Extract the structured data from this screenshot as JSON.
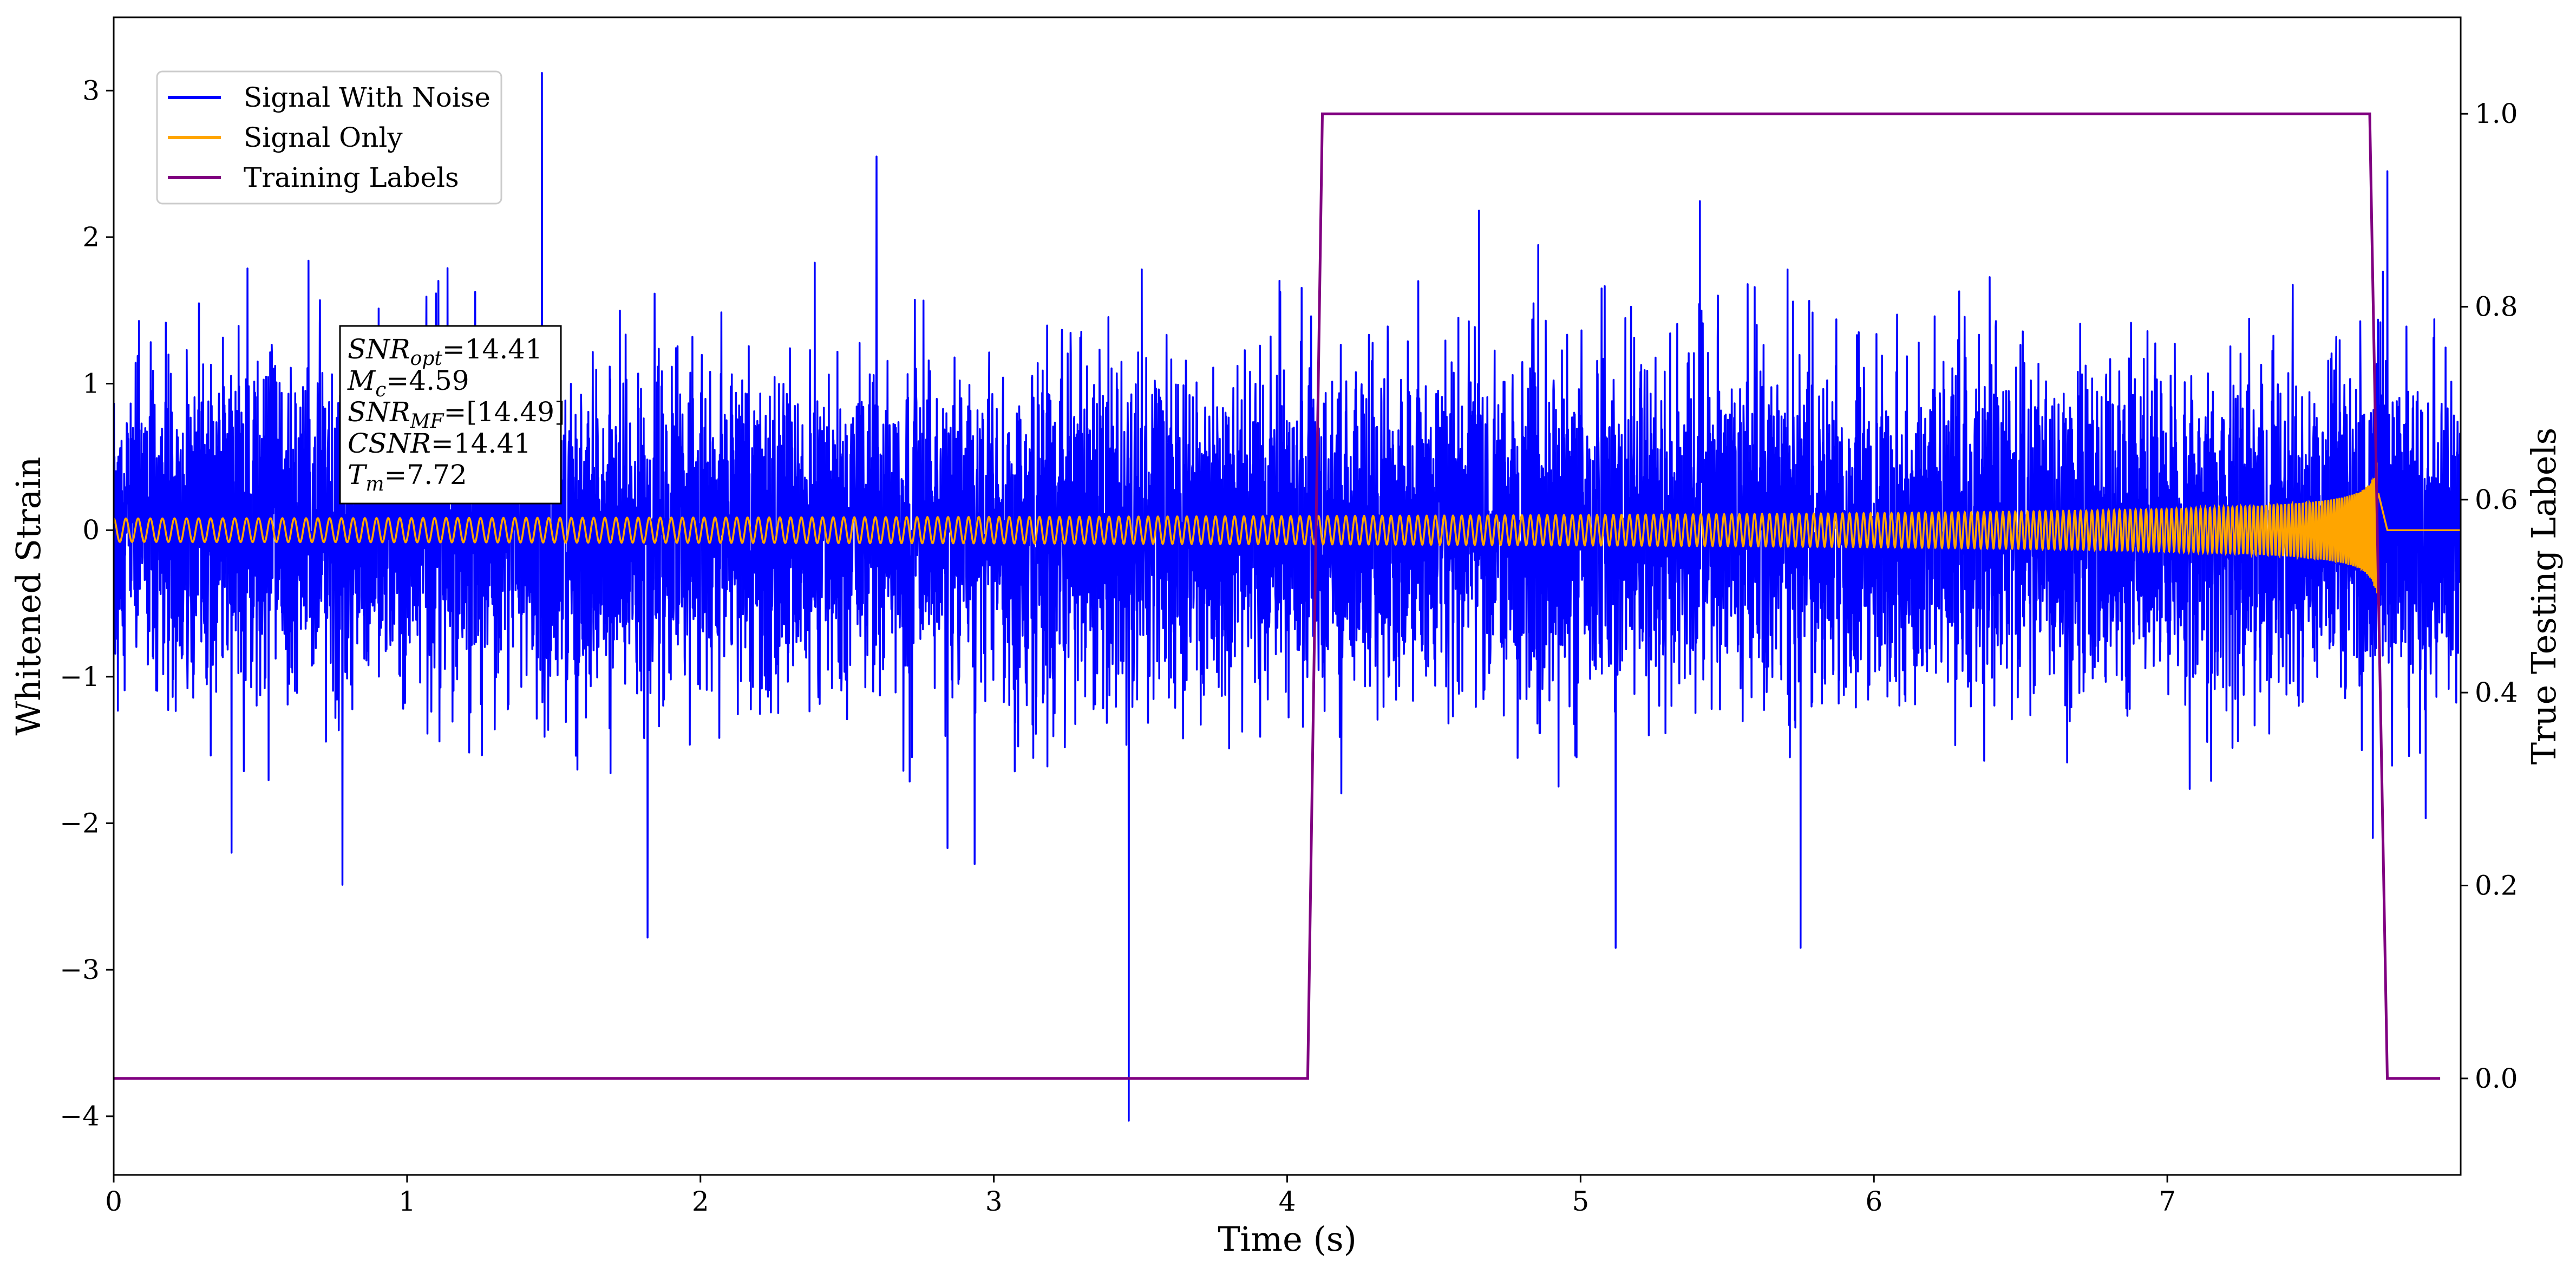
{
  "chart_data": {
    "type": "line",
    "title": "",
    "xlabel": "Time (s)",
    "ylabel": "Whitened Strain",
    "y2label": "True Testing Labels",
    "xlim": [
      0,
      8.0
    ],
    "ylim": [
      -4.4,
      3.5
    ],
    "y2lim": [
      -0.1,
      1.1
    ],
    "grid": false,
    "legend_position": "top-left",
    "x_ticks": [
      0,
      1,
      2,
      3,
      4,
      5,
      6,
      7
    ],
    "x_tick_labels": [
      "0",
      "1",
      "2",
      "3",
      "4",
      "5",
      "6",
      "7"
    ],
    "y_ticks": [
      -4,
      -3,
      -2,
      -1,
      0,
      1,
      2,
      3
    ],
    "y_tick_labels": [
      "−4",
      "−3",
      "−2",
      "−1",
      "0",
      "1",
      "2",
      "3"
    ],
    "y2_ticks": [
      0.0,
      0.2,
      0.4,
      0.6,
      0.8,
      1.0
    ],
    "y2_tick_labels": [
      "0.0",
      "0.2",
      "0.4",
      "0.6",
      "0.8",
      "1.0"
    ],
    "series": [
      {
        "name": "Signal With Noise",
        "color": "#0000ff",
        "axis": "left",
        "description": "dense noise, typical amplitude ±1.3, extremes 3.12 at t≈1.46 and −4.03 at t≈3.46",
        "duration": 8.0,
        "noise_std": 0.55,
        "peaks": [
          {
            "x": 1.46,
            "y": 3.12
          },
          {
            "x": 3.46,
            "y": -4.03
          },
          {
            "x": 2.6,
            "y": 2.55
          },
          {
            "x": 0.78,
            "y": -2.42
          },
          {
            "x": 1.82,
            "y": -2.78
          },
          {
            "x": 5.12,
            "y": -2.85
          },
          {
            "x": 5.75,
            "y": -2.85
          },
          {
            "x": 7.7,
            "y": -2.1
          },
          {
            "x": 7.75,
            "y": 2.45
          }
        ]
      },
      {
        "name": "Signal Only",
        "color": "#ffa500",
        "axis": "left",
        "description": "chirp: amplitude ~0.08 growing to ~0.75 at merger t≈7.72, flat ~0.0 after",
        "start_freq_hz": 24,
        "merger_time": 7.72,
        "initial_amplitude": 0.08,
        "peak_amplitude": 0.75,
        "post_merger_level": 0.0
      },
      {
        "name": "Training Labels",
        "color": "#800080",
        "axis": "right",
        "x": [
          0.0,
          4.07,
          4.12,
          7.69,
          7.75,
          7.93
        ],
        "y": [
          0.0,
          0.0,
          1.0,
          1.0,
          0.0,
          0.0
        ]
      }
    ],
    "annotation": {
      "position": "upper-left",
      "lines": [
        {
          "base": "SNR",
          "sub": "opt",
          "value": "=14.41"
        },
        {
          "base": "M",
          "sub": "c",
          "value": "=4.59"
        },
        {
          "base": "SNR",
          "sub": "MF",
          "value": "=[14.49]"
        },
        {
          "base": "CSNR",
          "sub": "",
          "value": "=14.41"
        },
        {
          "base": "T",
          "sub": "m",
          "value": "=7.72"
        }
      ]
    }
  }
}
